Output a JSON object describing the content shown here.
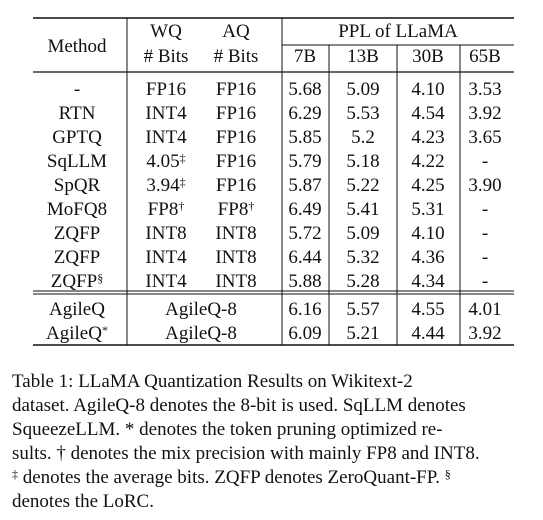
{
  "table": {
    "header": {
      "method": "Method",
      "wq_top": "WQ",
      "wq_bottom": "# Bits",
      "aq_top": "AQ",
      "aq_bottom": "# Bits",
      "ppl_group": "PPL of LLaMA",
      "sizes": [
        "7B",
        "13B",
        "30B",
        "65B"
      ]
    },
    "rows": [
      {
        "method": "-",
        "wq": "FP16",
        "aq": "FP16",
        "ppl": [
          "5.68",
          "5.09",
          "4.10",
          "3.53"
        ]
      },
      {
        "method": "RTN",
        "wq": "INT4",
        "aq": "FP16",
        "ppl": [
          "6.29",
          "5.53",
          "4.54",
          "3.92"
        ]
      },
      {
        "method": "GPTQ",
        "wq": "INT4",
        "aq": "FP16",
        "ppl": [
          "5.85",
          "5.2",
          "4.23",
          "3.65"
        ]
      },
      {
        "method": "SqLLM",
        "wq": "4.05",
        "wq_sup": "‡",
        "aq": "FP16",
        "ppl": [
          "5.79",
          "5.18",
          "4.22",
          "-"
        ]
      },
      {
        "method": "SpQR",
        "wq": "3.94",
        "wq_sup": "‡",
        "aq": "FP16",
        "ppl": [
          "5.87",
          "5.22",
          "4.25",
          "3.90"
        ]
      },
      {
        "method": "MoFQ8",
        "wq": "FP8",
        "wq_sup": "†",
        "aq": "FP8",
        "aq_sup": "†",
        "ppl": [
          "6.49",
          "5.41",
          "5.31",
          "-"
        ]
      },
      {
        "method": "ZQFP",
        "wq": "INT8",
        "aq": "INT8",
        "ppl": [
          "5.72",
          "5.09",
          "4.10",
          "-"
        ]
      },
      {
        "method": "ZQFP",
        "wq": "INT4",
        "aq": "INT8",
        "ppl": [
          "6.44",
          "5.32",
          "4.36",
          "-"
        ]
      },
      {
        "method": "ZQFP",
        "method_sup": "§",
        "wq": "INT4",
        "aq": "INT8",
        "ppl": [
          "5.88",
          "5.28",
          "4.34",
          "-"
        ]
      }
    ],
    "ours": [
      {
        "method": "AgileQ",
        "bits": "AgileQ-8",
        "ppl": [
          "6.16",
          "5.57",
          "4.55",
          "4.01"
        ]
      },
      {
        "method": "AgileQ",
        "method_sup": "*",
        "bits": "AgileQ-8",
        "ppl": [
          "6.09",
          "5.21",
          "4.44",
          "3.92"
        ]
      }
    ]
  },
  "caption": {
    "l1": "Table 1: LLaMA Quantization Results on Wikitext-2",
    "l2": "dataset. AgileQ-8 denotes the 8-bit is used. SqLLM denotes",
    "l3": "SqueezeLLM. * denotes the token pruning optimized re-",
    "l4_sup": "†",
    "l4": "sults. † denotes the mix precision with mainly FP8 and INT8.",
    "l5_sup": "‡",
    "l5": " denotes the average bits. ZQFP denotes ZeroQuant-FP. ",
    "l5_sup2": "§",
    "l6": "denotes the LoRC."
  }
}
